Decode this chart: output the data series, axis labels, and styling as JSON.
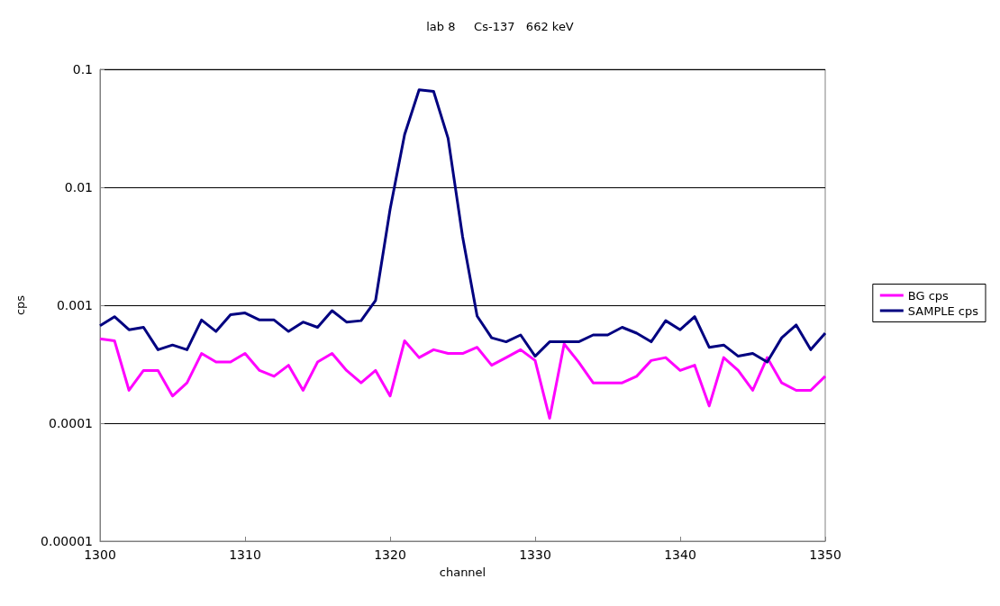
{
  "chart_data": {
    "type": "line",
    "title": "lab 8     Cs-137   662 keV",
    "xlabel": "channel",
    "ylabel": "cps",
    "log": "y",
    "grid": "y",
    "legend": "right",
    "marker": "none",
    "line_style": "solid",
    "x": [
      1300,
      1301,
      1302,
      1303,
      1304,
      1305,
      1306,
      1307,
      1308,
      1309,
      1310,
      1311,
      1312,
      1313,
      1314,
      1315,
      1316,
      1317,
      1318,
      1319,
      1320,
      1321,
      1322,
      1323,
      1324,
      1325,
      1326,
      1327,
      1328,
      1329,
      1330,
      1331,
      1332,
      1333,
      1334,
      1335,
      1336,
      1337,
      1338,
      1339,
      1340,
      1341,
      1342,
      1343,
      1344,
      1345,
      1346,
      1347,
      1348,
      1349,
      1350
    ],
    "xlim": [
      1300,
      1350
    ],
    "xticks": [
      1300,
      1310,
      1320,
      1330,
      1340,
      1350
    ],
    "ylim": [
      1e-05,
      0.1
    ],
    "yticks": [
      {
        "value": 1e-05,
        "label": "0.00001"
      },
      0.0001,
      0.001,
      0.01,
      0.1
    ],
    "series": [
      {
        "name": "BG cps",
        "color": "#ff00ff",
        "values": [
          0.00052,
          0.0005,
          0.00019,
          0.00028,
          0.00028,
          0.00017,
          0.00022,
          0.00039,
          0.00033,
          0.00033,
          0.00039,
          0.00028,
          0.00025,
          0.00031,
          0.00019,
          0.00033,
          0.00039,
          0.00028,
          0.00022,
          0.00028,
          0.00017,
          0.0005,
          0.00036,
          0.00042,
          0.00039,
          0.00039,
          0.00044,
          0.00031,
          0.00036,
          0.00042,
          0.00034,
          0.00011,
          0.00047,
          0.00033,
          0.00022,
          0.00022,
          0.00022,
          0.00025,
          0.00034,
          0.00036,
          0.00028,
          0.00031,
          0.00014,
          0.00036,
          0.00028,
          0.00019,
          0.00036,
          0.00022,
          0.00019,
          0.00019,
          0.00025
        ]
      },
      {
        "name": "SAMPLE cps",
        "color": "#000080",
        "values": [
          0.00067,
          0.0008,
          0.00062,
          0.00065,
          0.00042,
          0.00046,
          0.00042,
          0.00075,
          0.0006,
          0.00083,
          0.00086,
          0.00075,
          0.00075,
          0.0006,
          0.00072,
          0.00065,
          0.0009,
          0.00072,
          0.00074,
          0.0011,
          0.0065,
          0.028,
          0.067,
          0.065,
          0.026,
          0.0038,
          0.00081,
          0.00053,
          0.00049,
          0.00056,
          0.00037,
          0.00049,
          0.00049,
          0.00049,
          0.00056,
          0.00056,
          0.00065,
          0.00058,
          0.00049,
          0.00074,
          0.00062,
          0.0008,
          0.00044,
          0.00046,
          0.00037,
          0.00039,
          0.00033,
          0.00053,
          0.00068,
          0.00042,
          0.00058
        ]
      }
    ]
  }
}
